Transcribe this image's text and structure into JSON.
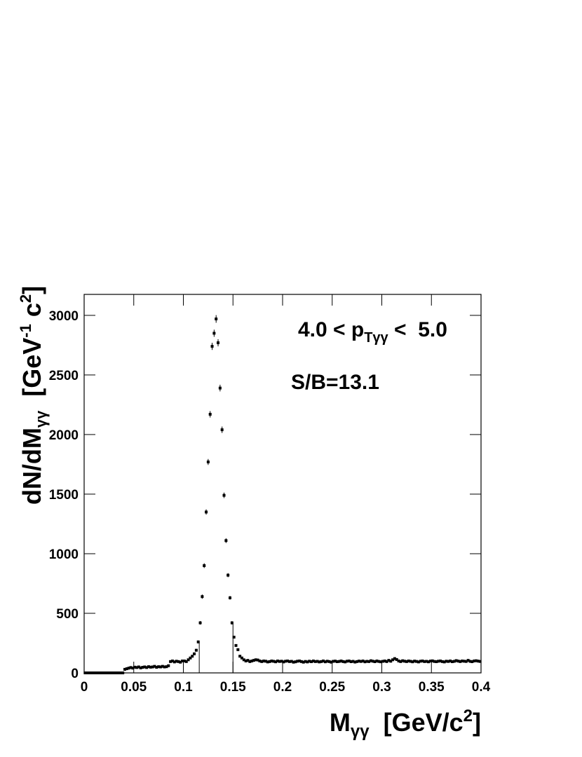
{
  "chart_data": {
    "type": "histogram-errors",
    "title": {
      "pre": "4.0 < p",
      "sub": "Tγγ",
      "post": " <  5.0"
    },
    "annotation": "S/B=13.1",
    "x_label": {
      "main": "M",
      "sub": "γγ",
      "unit": "  [GeV/c",
      "sup": "2",
      "close": "]"
    },
    "y_label": {
      "main": "dN/dM",
      "sub": "γγ",
      "unit": "  [GeV",
      "sup1": "-1",
      "unit2": " c",
      "sup2": "2",
      "close": "]"
    },
    "color": "#000000",
    "xlim": [
      0,
      0.4
    ],
    "ylim": [
      0,
      3176
    ],
    "xticks": [
      0,
      0.05,
      0.1,
      0.15,
      0.2,
      0.25,
      0.3,
      0.35,
      0.4
    ],
    "yticks": [
      0,
      500,
      1000,
      1500,
      2000,
      2500,
      3000
    ],
    "signal_window": [
      0.116,
      0.15
    ],
    "x": [
      0.001,
      0.003,
      0.005,
      0.007,
      0.009,
      0.011,
      0.013,
      0.015,
      0.017,
      0.019,
      0.021,
      0.023,
      0.025,
      0.027,
      0.029,
      0.031,
      0.033,
      0.035,
      0.037,
      0.039,
      0.041,
      0.043,
      0.045,
      0.047,
      0.049,
      0.051,
      0.053,
      0.055,
      0.057,
      0.059,
      0.061,
      0.063,
      0.065,
      0.067,
      0.069,
      0.071,
      0.073,
      0.075,
      0.077,
      0.079,
      0.081,
      0.083,
      0.085,
      0.087,
      0.089,
      0.091,
      0.093,
      0.095,
      0.097,
      0.099,
      0.101,
      0.103,
      0.105,
      0.107,
      0.109,
      0.111,
      0.113,
      0.115,
      0.117,
      0.119,
      0.121,
      0.123,
      0.125,
      0.127,
      0.129,
      0.131,
      0.133,
      0.135,
      0.137,
      0.139,
      0.141,
      0.143,
      0.145,
      0.147,
      0.149,
      0.151,
      0.153,
      0.155,
      0.157,
      0.159,
      0.161,
      0.163,
      0.165,
      0.167,
      0.169,
      0.171,
      0.173,
      0.175,
      0.177,
      0.179,
      0.181,
      0.183,
      0.185,
      0.187,
      0.189,
      0.191,
      0.193,
      0.195,
      0.197,
      0.199,
      0.201,
      0.203,
      0.205,
      0.207,
      0.209,
      0.211,
      0.213,
      0.215,
      0.217,
      0.219,
      0.221,
      0.223,
      0.225,
      0.227,
      0.229,
      0.231,
      0.233,
      0.235,
      0.237,
      0.239,
      0.241,
      0.243,
      0.245,
      0.247,
      0.249,
      0.251,
      0.253,
      0.255,
      0.257,
      0.259,
      0.261,
      0.263,
      0.265,
      0.267,
      0.269,
      0.271,
      0.273,
      0.275,
      0.277,
      0.279,
      0.281,
      0.283,
      0.285,
      0.287,
      0.289,
      0.291,
      0.293,
      0.295,
      0.297,
      0.299,
      0.301,
      0.303,
      0.305,
      0.307,
      0.309,
      0.311,
      0.313,
      0.315,
      0.317,
      0.319,
      0.321,
      0.323,
      0.325,
      0.327,
      0.329,
      0.331,
      0.333,
      0.335,
      0.337,
      0.339,
      0.341,
      0.343,
      0.345,
      0.347,
      0.349,
      0.351,
      0.353,
      0.355,
      0.357,
      0.359,
      0.361,
      0.363,
      0.365,
      0.367,
      0.369,
      0.371,
      0.373,
      0.375,
      0.377,
      0.379,
      0.381,
      0.383,
      0.385,
      0.387,
      0.389,
      0.391,
      0.393,
      0.395,
      0.397,
      0.399
    ],
    "values": [
      0,
      0,
      0,
      0,
      0,
      0,
      0,
      0,
      0,
      0,
      0,
      0,
      0,
      0,
      0,
      0,
      0,
      0,
      0,
      0,
      30,
      35,
      40,
      45,
      40,
      48,
      45,
      50,
      42,
      47,
      50,
      45,
      52,
      48,
      50,
      55,
      47,
      52,
      50,
      55,
      50,
      52,
      60,
      95,
      100,
      92,
      98,
      95,
      90,
      100,
      100,
      95,
      110,
      125,
      140,
      160,
      190,
      260,
      420,
      640,
      900,
      1350,
      1770,
      2170,
      2740,
      2850,
      2970,
      2770,
      2390,
      2040,
      1490,
      1110,
      820,
      630,
      420,
      300,
      230,
      195,
      140,
      125,
      110,
      100,
      105,
      95,
      100,
      105,
      110,
      108,
      100,
      95,
      100,
      98,
      92,
      95,
      100,
      97,
      93,
      100,
      96,
      98,
      92,
      98,
      100,
      95,
      97,
      90,
      93,
      98,
      100,
      95,
      90,
      96,
      92,
      98,
      94,
      100,
      95,
      97,
      92,
      95,
      100,
      93,
      98,
      95,
      90,
      97,
      99,
      94,
      96,
      100,
      95,
      92,
      98,
      100,
      94,
      97,
      91,
      95,
      99,
      96,
      100,
      93,
      97,
      95,
      102,
      98,
      94,
      100,
      96,
      93,
      97,
      100,
      95,
      105,
      98,
      110,
      120,
      112,
      100,
      95,
      102,
      98,
      95,
      100,
      97,
      93,
      99,
      96,
      92,
      98,
      100,
      95,
      97,
      93,
      99,
      101,
      96,
      94,
      98,
      100,
      95,
      92,
      98,
      96,
      100,
      94,
      97,
      103,
      99,
      95,
      100,
      98,
      96,
      105,
      97,
      94,
      100,
      102,
      99,
      96
    ],
    "errors": [
      0,
      0,
      0,
      0,
      0,
      0,
      0,
      0,
      0,
      0,
      0,
      0,
      0,
      0,
      0,
      0,
      0,
      0,
      0,
      0,
      5,
      5,
      5,
      5,
      5,
      5,
      5,
      5,
      5,
      5,
      5,
      5,
      5,
      5,
      5,
      5,
      5,
      5,
      5,
      5,
      5,
      5,
      5,
      8,
      8,
      8,
      8,
      8,
      8,
      8,
      8,
      8,
      9,
      9,
      10,
      10,
      11,
      12,
      15,
      18,
      20,
      22,
      25,
      27,
      30,
      30,
      32,
      30,
      28,
      27,
      23,
      20,
      17,
      15,
      14,
      12,
      10,
      10,
      9,
      9,
      8,
      8,
      8,
      8,
      8,
      8,
      8,
      8,
      8,
      8,
      8,
      8,
      8,
      8,
      8,
      8,
      8,
      8,
      8,
      8,
      8,
      8,
      8,
      8,
      8,
      8,
      8,
      8,
      8,
      8,
      8,
      8,
      8,
      8,
      8,
      8,
      8,
      8,
      8,
      8,
      8,
      8,
      8,
      8,
      8,
      8,
      8,
      8,
      8,
      8,
      8,
      8,
      8,
      8,
      8,
      8,
      8,
      8,
      8,
      8,
      8,
      8,
      8,
      8,
      8,
      8,
      8,
      8,
      8,
      8,
      8,
      8,
      8,
      8,
      8,
      8,
      8,
      8,
      8,
      8,
      8,
      8,
      8,
      8,
      8,
      8,
      8,
      8,
      8,
      8,
      8,
      8,
      8,
      8,
      8,
      8,
      8,
      8,
      8,
      8,
      8,
      8,
      8,
      8,
      8,
      8,
      8,
      8,
      8,
      8,
      8,
      8,
      8,
      8,
      8,
      8,
      8,
      8,
      8,
      8
    ]
  }
}
